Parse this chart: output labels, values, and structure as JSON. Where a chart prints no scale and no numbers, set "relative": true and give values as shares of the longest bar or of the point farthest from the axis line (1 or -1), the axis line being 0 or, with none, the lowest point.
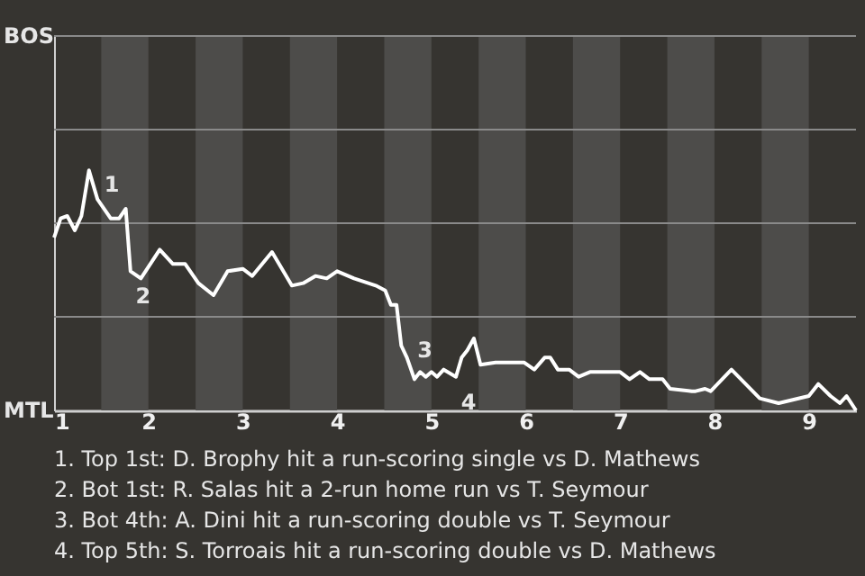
{
  "chart_data": {
    "type": "line",
    "relative": true,
    "x": [
      1,
      1.07,
      1.14,
      1.22,
      1.29,
      1.37,
      1.46,
      1.6,
      1.69,
      1.76,
      1.81,
      1.92,
      2.12,
      2.26,
      2.39,
      2.53,
      2.69,
      2.84,
      3,
      3.1,
      3.31,
      3.52,
      3.64,
      3.77,
      3.89,
      4,
      4.18,
      4.41,
      4.51,
      4.57,
      4.63,
      4.68,
      4.74,
      4.82,
      4.88,
      4.94,
      5,
      5.06,
      5.13,
      5.26,
      5.32,
      5.38,
      5.45,
      5.52,
      5.68,
      5.76,
      5.98,
      6.09,
      6.2,
      6.26,
      6.34,
      6.46,
      6.56,
      6.68,
      6.85,
      7,
      7.1,
      7.21,
      7.31,
      7.45,
      7.53,
      7.76,
      7.8,
      7.9,
      7.96,
      8.18,
      8.48,
      8.68,
      9,
      9.1,
      9.23,
      9.33,
      9.4,
      9.5
    ],
    "series": [
      {
        "color": "#ffffff",
        "values": [
          0.72,
          0.8,
          0.81,
          0.75,
          0.81,
          1,
          0.88,
          0.8,
          0.8,
          0.84,
          0.58,
          0.55,
          0.67,
          0.61,
          0.61,
          0.53,
          0.48,
          0.58,
          0.59,
          0.56,
          0.66,
          0.52,
          0.53,
          0.56,
          0.55,
          0.58,
          0.55,
          0.52,
          0.5,
          0.44,
          0.44,
          0.27,
          0.22,
          0.13,
          0.16,
          0.14,
          0.16,
          0.14,
          0.17,
          0.14,
          0.22,
          0.25,
          0.3,
          0.19,
          0.2,
          0.2,
          0.2,
          0.17,
          0.22,
          0.22,
          0.17,
          0.17,
          0.14,
          0.16,
          0.16,
          0.16,
          0.13,
          0.16,
          0.13,
          0.13,
          0.09,
          0.08,
          0.08,
          0.09,
          0.08,
          0.17,
          0.05,
          0.03,
          0.06,
          0.11,
          0.06,
          0.03,
          0.06,
          0
        ]
      }
    ],
    "xlim": [
      1,
      9.5
    ],
    "xticks": [
      1,
      2,
      3,
      4,
      5,
      6,
      7,
      8,
      9
    ],
    "ref_lines": [
      {
        "axis": "y",
        "value": 0.39,
        "color": "#8a8a8a"
      },
      {
        "axis": "y",
        "value": 0.78,
        "color": "#8a8a8a"
      },
      {
        "axis": "y",
        "value": 1.17,
        "color": "#8a8a8a"
      },
      {
        "axis": "y",
        "value": 1.56,
        "color": "#8a8a8a"
      }
    ],
    "bands": [
      {
        "axis": "x",
        "from": 1.5,
        "to": 2,
        "color": "#4d4c4a"
      },
      {
        "axis": "x",
        "from": 2.5,
        "to": 3,
        "color": "#4d4c4a"
      },
      {
        "axis": "x",
        "from": 3.5,
        "to": 4,
        "color": "#4d4c4a"
      },
      {
        "axis": "x",
        "from": 4.5,
        "to": 5,
        "color": "#4d4c4a"
      },
      {
        "axis": "x",
        "from": 5.5,
        "to": 6,
        "color": "#4d4c4a"
      },
      {
        "axis": "x",
        "from": 6.5,
        "to": 7,
        "color": "#4d4c4a"
      },
      {
        "axis": "x",
        "from": 7.5,
        "to": 8,
        "color": "#4d4c4a"
      },
      {
        "axis": "x",
        "from": 8.5,
        "to": 9,
        "color": "#4d4c4a"
      }
    ],
    "annotations": [
      {
        "text": "1",
        "x": 1.46,
        "y": 0.88
      },
      {
        "text": "2",
        "x": 1.81,
        "y": 0.58
      },
      {
        "text": "3",
        "x": 4.74,
        "y": 0.22
      },
      {
        "text": "4",
        "x": 5.26,
        "y": 0.14
      },
      "BOS",
      "MTL",
      "1. Top 1st: D. Brophy hit a run-scoring single vs D. Mathews",
      "2. Bot 1st: R. Salas hit a 2-run home run vs T. Seymour",
      "3. Bot 4th: A. Dini hit a run-scoring double vs T. Seymour",
      "4. Top 5th: S. Torroais hit a run-scoring double vs D. Mathews"
    ]
  }
}
